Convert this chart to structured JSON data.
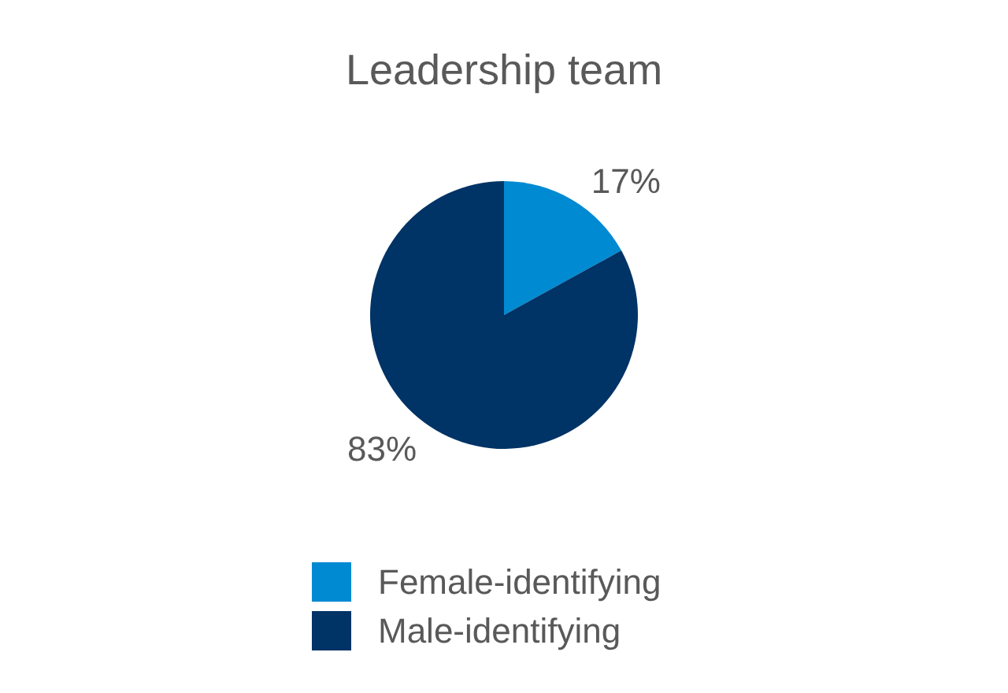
{
  "chart_data": {
    "type": "pie",
    "title": "Leadership team",
    "categories": [
      "Female-identifying",
      "Male-identifying"
    ],
    "values": [
      17,
      83
    ],
    "value_labels": [
      "17%",
      "83%"
    ],
    "colors": [
      "#008ad2",
      "#003366"
    ],
    "legend": "bottom"
  }
}
